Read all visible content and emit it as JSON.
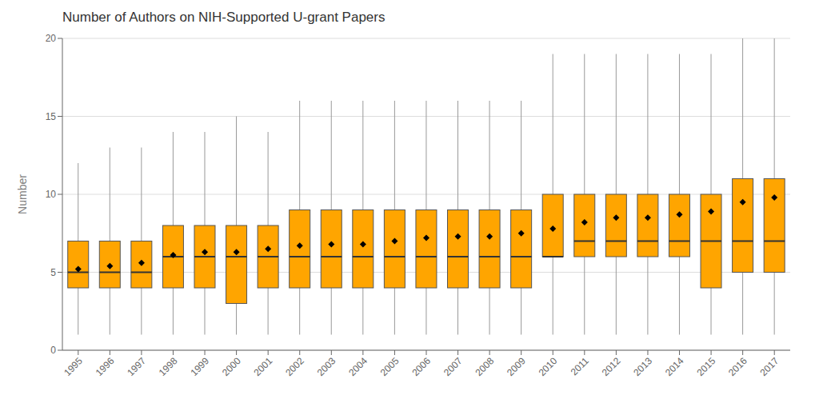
{
  "chart_data": {
    "type": "box",
    "title": "Number of Authors on NIH-Supported U-grant Papers",
    "ylabel": "Number",
    "categories": [
      "1995",
      "1996",
      "1997",
      "1998",
      "1999",
      "2000",
      "2001",
      "2002",
      "2003",
      "2004",
      "2005",
      "2006",
      "2007",
      "2008",
      "2009",
      "2010",
      "2011",
      "2012",
      "2013",
      "2014",
      "2015",
      "2016",
      "2017"
    ],
    "whislo": [
      1,
      1,
      1,
      1,
      1,
      1,
      1,
      1,
      1,
      1,
      1,
      1,
      1,
      1,
      1,
      1,
      1,
      1,
      1,
      1,
      1,
      1,
      1
    ],
    "q1": [
      4,
      4,
      4,
      4,
      4,
      3,
      4,
      4,
      4,
      4,
      4,
      4,
      4,
      4,
      4,
      6,
      6,
      6,
      6,
      6,
      4,
      5,
      5
    ],
    "med": [
      5,
      5,
      5,
      6,
      6,
      6,
      6,
      6,
      6,
      6,
      6,
      6,
      6,
      6,
      6,
      6,
      7,
      7,
      7,
      7,
      7,
      7,
      7
    ],
    "q3": [
      7,
      7,
      7,
      8,
      8,
      8,
      8,
      9,
      9,
      9,
      9,
      9,
      9,
      9,
      9,
      10,
      10,
      10,
      10,
      10,
      10,
      11,
      11
    ],
    "whishi": [
      12,
      13,
      13,
      14,
      14,
      15,
      14,
      16,
      16,
      16,
      16,
      16,
      16,
      16,
      16,
      19,
      19,
      19,
      19,
      19,
      19,
      20,
      20
    ],
    "mean": [
      5.2,
      5.4,
      5.6,
      6.1,
      6.3,
      6.3,
      6.5,
      6.7,
      6.8,
      6.8,
      7.0,
      7.2,
      7.3,
      7.3,
      7.5,
      7.8,
      8.2,
      8.5,
      8.5,
      8.7,
      8.9,
      9.5,
      9.8
    ],
    "color": "#FFA500",
    "marker": "diamond",
    "ylim": [
      0,
      20
    ],
    "yticks": [
      0,
      5,
      10,
      15,
      20
    ],
    "grid": true
  }
}
